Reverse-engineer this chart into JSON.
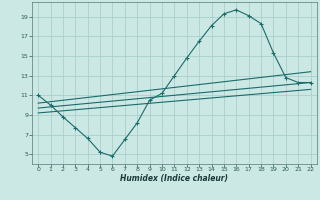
{
  "xlabel": "Humidex (Indice chaleur)",
  "bg_color": "#cce8e4",
  "grid_color": "#aacfca",
  "line_color": "#1a6b6b",
  "xlim": [
    -0.5,
    22.5
  ],
  "ylim": [
    4,
    20.5
  ],
  "xticks": [
    0,
    1,
    2,
    3,
    4,
    5,
    6,
    7,
    8,
    9,
    10,
    11,
    12,
    13,
    14,
    15,
    16,
    17,
    18,
    19,
    20,
    21,
    22
  ],
  "yticks": [
    5,
    7,
    9,
    11,
    13,
    15,
    17,
    19
  ],
  "curves": [
    {
      "x": [
        0,
        1,
        2,
        3,
        4,
        5,
        6,
        7,
        8,
        9,
        10,
        11,
        12,
        13,
        14,
        15,
        16,
        17,
        18,
        19,
        20,
        21,
        22
      ],
      "y": [
        11,
        10,
        8.8,
        7.7,
        6.6,
        5.2,
        4.8,
        6.5,
        8.2,
        10.5,
        11.2,
        13.0,
        14.8,
        16.5,
        18.1,
        19.3,
        19.7,
        19.1,
        18.3,
        15.3,
        12.8,
        12.3,
        12.3
      ]
    },
    {
      "x": [
        0,
        22
      ],
      "y": [
        10.2,
        13.4
      ]
    },
    {
      "x": [
        0,
        22
      ],
      "y": [
        9.7,
        12.3
      ]
    },
    {
      "x": [
        0,
        22
      ],
      "y": [
        9.2,
        11.6
      ]
    }
  ]
}
